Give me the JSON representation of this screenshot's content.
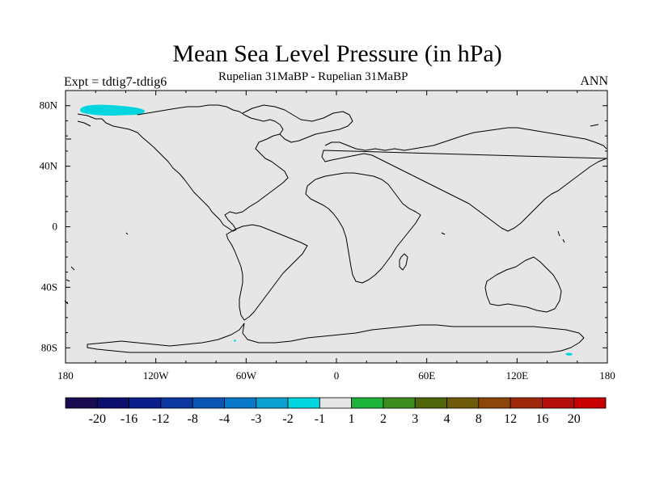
{
  "map": {
    "title": "Mean Sea Level Pressure (in hPa)",
    "left_label": "Expt = tdtig7-tdtig6",
    "subtitle": "Rupelian  31MaBP - Rupelian  31MaBP",
    "right_label": "ANN",
    "projection": "cylindrical equidistant",
    "lon_range": [
      -180,
      180
    ],
    "lat_range": [
      -90,
      90
    ],
    "background_color": "#e6e6e6",
    "lat_ticks": [
      {
        "value": 80,
        "label": "80N"
      },
      {
        "value": 40,
        "label": "40N"
      },
      {
        "value": 0,
        "label": "0"
      },
      {
        "value": -40,
        "label": "40S"
      },
      {
        "value": -80,
        "label": "80S"
      }
    ],
    "lon_ticks": [
      {
        "value": -180,
        "label": "180"
      },
      {
        "value": -120,
        "label": "120W"
      },
      {
        "value": -60,
        "label": "60W"
      },
      {
        "value": 0,
        "label": "0"
      },
      {
        "value": 60,
        "label": "60E"
      },
      {
        "value": 120,
        "label": "120E"
      },
      {
        "value": 180,
        "label": "180"
      }
    ],
    "anomaly_regions": [
      {
        "name": "north-pacific-arctic",
        "level": "-2 to -1",
        "color": "#00d5e0"
      },
      {
        "name": "antarctic-coast-east",
        "level": "-2 to -1",
        "color": "#00d5e0"
      }
    ]
  },
  "colorbar": {
    "colors": [
      "#1a0a50",
      "#0c0f6e",
      "#0a1e8c",
      "#0a37a0",
      "#0a55b4",
      "#0a78c8",
      "#0aa0d2",
      "#00d5e0",
      "#e6e6e6",
      "#1eb43c",
      "#3c8c1e",
      "#50640a",
      "#6e5a0a",
      "#8c460a",
      "#a0280a",
      "#b40f0a",
      "#c80000"
    ],
    "labels": [
      "-20",
      "-16",
      "-12",
      "-8",
      "-4",
      "-3",
      "-2",
      "-1",
      "1",
      "2",
      "3",
      "4",
      "8",
      "12",
      "16",
      "20"
    ]
  }
}
